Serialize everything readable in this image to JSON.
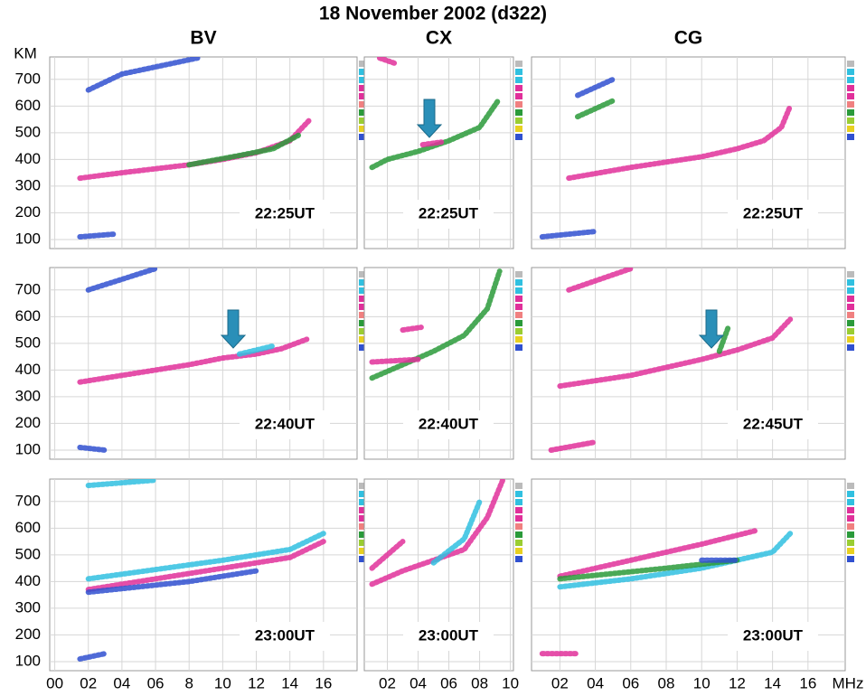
{
  "title": "18 November 2002 (d322)",
  "chart_data": [
    {
      "type": "scatter",
      "title": "BV",
      "ylabel": "KM",
      "ylim": [
        66,
        784
      ],
      "yticks": [
        100,
        200,
        300,
        400,
        500,
        600,
        700
      ],
      "annotation": "22:25UT",
      "series": [
        {
          "color": "#e0309a",
          "x": [
            1.5,
            4,
            8,
            10,
            12,
            14,
            15.2
          ],
          "values": [
            330,
            350,
            380,
            400,
            425,
            470,
            550
          ]
        },
        {
          "color": "#2a9a3a",
          "x": [
            8,
            11,
            13,
            14.5
          ],
          "values": [
            380,
            415,
            440,
            490
          ]
        },
        {
          "color": "#3050d0",
          "x": [
            2,
            4,
            8.5
          ],
          "values": [
            660,
            720,
            780
          ]
        },
        {
          "color": "#3050d0",
          "x": [
            1.5,
            3.5
          ],
          "values": [
            110,
            120
          ]
        }
      ]
    },
    {
      "type": "scatter",
      "title": "CX",
      "annotation": "22:25UT",
      "series": [
        {
          "color": "#2a9a3a",
          "x": [
            1,
            2,
            4,
            6,
            8,
            9.2
          ],
          "values": [
            370,
            400,
            430,
            470,
            520,
            620
          ]
        },
        {
          "color": "#e0309a",
          "x": [
            4.3,
            5.5
          ],
          "values": [
            455,
            465
          ]
        },
        {
          "color": "#e0309a",
          "x": [
            1.5,
            2.5
          ],
          "values": [
            780,
            760
          ]
        }
      ]
    },
    {
      "type": "scatter",
      "title": "CG",
      "annotation": "22:25UT",
      "series": [
        {
          "color": "#e0309a",
          "x": [
            2.5,
            6,
            10,
            12,
            13.5,
            14.5,
            15
          ],
          "values": [
            330,
            370,
            410,
            440,
            470,
            520,
            600
          ]
        },
        {
          "color": "#3050d0",
          "x": [
            3,
            5
          ],
          "values": [
            640,
            700
          ]
        },
        {
          "color": "#2a9a3a",
          "x": [
            3,
            5
          ],
          "values": [
            560,
            620
          ]
        },
        {
          "color": "#3050d0",
          "x": [
            1,
            4
          ],
          "values": [
            110,
            130
          ]
        }
      ]
    },
    {
      "type": "scatter",
      "ylim": [
        66,
        784
      ],
      "yticks": [
        100,
        200,
        300,
        400,
        500,
        600,
        700
      ],
      "annotation": "22:40UT",
      "series": [
        {
          "color": "#e0309a",
          "x": [
            1.5,
            4,
            8,
            10,
            12,
            13.5,
            15
          ],
          "values": [
            355,
            380,
            420,
            445,
            460,
            480,
            515
          ]
        },
        {
          "color": "#30c0e0",
          "x": [
            11,
            13
          ],
          "values": [
            460,
            490
          ]
        },
        {
          "color": "#3050d0",
          "x": [
            2,
            6
          ],
          "values": [
            700,
            780
          ]
        },
        {
          "color": "#3050d0",
          "x": [
            1.5,
            3
          ],
          "values": [
            110,
            100
          ]
        }
      ]
    },
    {
      "type": "scatter",
      "annotation": "22:40UT",
      "series": [
        {
          "color": "#2a9a3a",
          "x": [
            1,
            3,
            5,
            7,
            8.5,
            9.3
          ],
          "values": [
            370,
            420,
            470,
            530,
            630,
            770
          ]
        },
        {
          "color": "#e0309a",
          "x": [
            1,
            4
          ],
          "values": [
            430,
            440
          ]
        },
        {
          "color": "#e0309a",
          "x": [
            3,
            4.2
          ],
          "values": [
            550,
            560
          ]
        }
      ]
    },
    {
      "type": "scatter",
      "annotation": "22:45UT",
      "series": [
        {
          "color": "#e0309a",
          "x": [
            2,
            6,
            10,
            12,
            14,
            15
          ],
          "values": [
            340,
            380,
            440,
            475,
            520,
            590
          ]
        },
        {
          "color": "#2a9a3a",
          "x": [
            11,
            11.5
          ],
          "values": [
            470,
            560
          ]
        },
        {
          "color": "#e0309a",
          "x": [
            2.5,
            6
          ],
          "values": [
            700,
            780
          ]
        },
        {
          "color": "#e0309a",
          "x": [
            1.5,
            4
          ],
          "values": [
            100,
            130
          ]
        }
      ]
    },
    {
      "type": "scatter",
      "ylim": [
        66,
        784
      ],
      "yticks": [
        100,
        200,
        300,
        400,
        500,
        600,
        700
      ],
      "annotation": "23:00UT",
      "xlim": [
        -0.3,
        18
      ],
      "xticks": [
        {
          "value": 0,
          "label": "00"
        },
        {
          "value": 2,
          "label": "02"
        },
        {
          "value": 4,
          "label": "04"
        },
        {
          "value": 6,
          "label": "06"
        },
        8,
        10,
        12,
        14,
        16
      ],
      "series": [
        {
          "color": "#30c0e0",
          "x": [
            2,
            6,
            10,
            14,
            16
          ],
          "values": [
            410,
            445,
            480,
            520,
            580
          ]
        },
        {
          "color": "#e0309a",
          "x": [
            2,
            6,
            10,
            14,
            16
          ],
          "values": [
            370,
            410,
            450,
            490,
            550
          ]
        },
        {
          "color": "#3050d0",
          "x": [
            2,
            8,
            12
          ],
          "values": [
            360,
            400,
            440
          ]
        },
        {
          "color": "#30c0e0",
          "x": [
            2,
            6
          ],
          "values": [
            760,
            780
          ]
        },
        {
          "color": "#3050d0",
          "x": [
            1.5,
            3
          ],
          "values": [
            110,
            130
          ]
        }
      ]
    },
    {
      "type": "scatter",
      "annotation": "23:00UT",
      "xlim": [
        0.5,
        10.2
      ],
      "xticks": [
        {
          "value": 2,
          "label": "02"
        },
        {
          "value": 4,
          "label": "04"
        },
        {
          "value": 6,
          "label": "06"
        },
        {
          "value": 8,
          "label": "08"
        },
        10
      ],
      "series": [
        {
          "color": "#e0309a",
          "x": [
            1,
            3,
            5,
            7,
            8.5,
            9.5
          ],
          "values": [
            390,
            440,
            480,
            520,
            640,
            780
          ]
        },
        {
          "color": "#e0309a",
          "x": [
            1,
            3
          ],
          "values": [
            450,
            550
          ]
        },
        {
          "color": "#30c0e0",
          "x": [
            5,
            7,
            8
          ],
          "values": [
            470,
            560,
            700
          ]
        }
      ]
    },
    {
      "type": "scatter",
      "annotation": "23:00UT",
      "xlabel": "MHz",
      "xlim": [
        0.4,
        18.1
      ],
      "xticks": [
        {
          "value": 2,
          "label": "02"
        },
        {
          "value": 4,
          "label": "04"
        },
        {
          "value": 6,
          "label": "06"
        },
        {
          "value": 8,
          "label": "08"
        },
        10,
        12,
        14,
        16
      ],
      "series": [
        {
          "color": "#e0309a",
          "x": [
            2,
            6,
            10,
            13
          ],
          "values": [
            420,
            480,
            540,
            590
          ]
        },
        {
          "color": "#30c0e0",
          "x": [
            2,
            6,
            10,
            14,
            15
          ],
          "values": [
            380,
            410,
            450,
            510,
            580
          ]
        },
        {
          "color": "#2a9a3a",
          "x": [
            2,
            8,
            12
          ],
          "values": [
            410,
            450,
            480
          ]
        },
        {
          "color": "#3050d0",
          "x": [
            10,
            12
          ],
          "values": [
            480,
            480
          ]
        },
        {
          "color": "#e0309a",
          "x": [
            1,
            3
          ],
          "values": [
            130,
            130
          ]
        }
      ]
    }
  ]
}
